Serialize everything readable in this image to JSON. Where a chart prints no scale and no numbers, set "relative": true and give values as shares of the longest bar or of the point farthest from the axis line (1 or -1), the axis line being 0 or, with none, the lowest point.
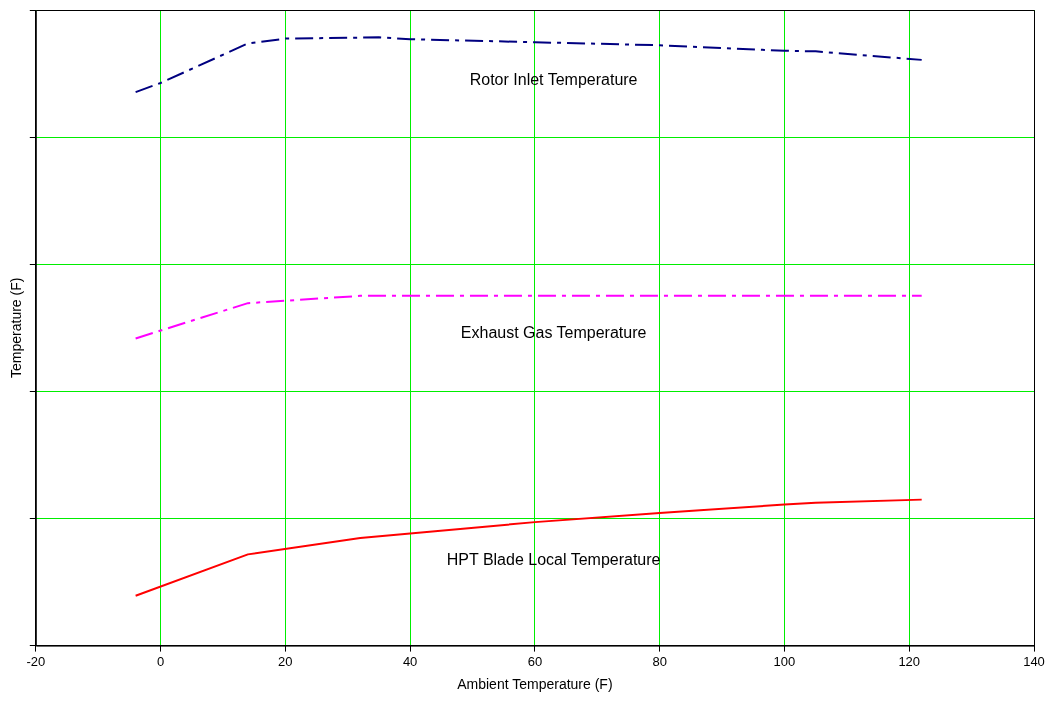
{
  "chart_data": {
    "type": "line",
    "xlabel": "Ambient Temperature (F)",
    "ylabel": "Temperature (F)",
    "relative": true,
    "grid": true,
    "legend": false,
    "marker": "none",
    "xlim": [
      -20,
      140
    ],
    "xticks": [
      -20,
      0,
      20,
      40,
      60,
      80,
      100,
      120,
      140
    ],
    "series": [
      {
        "name": "Rotor Inlet Temperature",
        "color": "#000080",
        "line_style": "dashdot",
        "x": [
          -4,
          0,
          14,
          20,
          35,
          40,
          60,
          80,
          100,
          105,
          122
        ],
        "values": [
          0.91,
          0.925,
          0.99,
          0.998,
          1.0,
          0.997,
          0.992,
          0.987,
          0.978,
          0.977,
          0.963
        ]
      },
      {
        "name": "Exhaust Gas Temperature",
        "color": "#ff00ff",
        "line_style": "dashdot",
        "x": [
          -4,
          0,
          14,
          20,
          32,
          122
        ],
        "values": [
          0.505,
          0.518,
          0.563,
          0.567,
          0.575,
          0.575
        ]
      },
      {
        "name": "HPT Blade Local Temperature",
        "color": "#ff0000",
        "line_style": "solid",
        "x": [
          -4,
          14,
          32,
          60,
          80,
          100,
          105,
          122
        ],
        "values": [
          0.082,
          0.15,
          0.177,
          0.203,
          0.218,
          0.232,
          0.235,
          0.24
        ]
      }
    ]
  }
}
